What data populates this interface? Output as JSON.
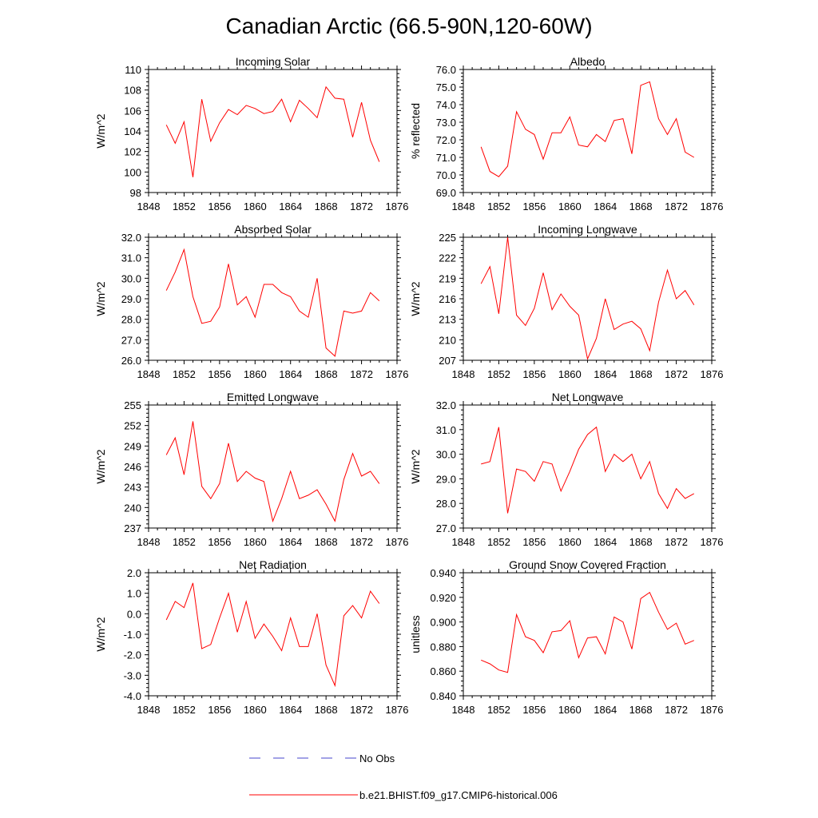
{
  "figure": {
    "title": "Canadian Arctic (66.5-90N,120-60W)"
  },
  "legend": {
    "items": [
      {
        "label": "No Obs",
        "color": "#4444cc",
        "style": "dashed"
      },
      {
        "label": "b.e21.BHIST.f09_g17.CMIP6-historical.006",
        "color": "#ff0000",
        "style": "solid"
      }
    ]
  },
  "chart_data": [
    {
      "type": "line",
      "title": "Incoming Solar",
      "ylabel": "W/m^2",
      "xlim": [
        1848,
        1876
      ],
      "xticks": [
        "1848",
        "1852",
        "1856",
        "1860",
        "1864",
        "1868",
        "1872",
        "1876"
      ],
      "ylim": [
        98,
        110
      ],
      "yticks": [
        "98",
        "100",
        "102",
        "104",
        "106",
        "108",
        "110"
      ],
      "x": [
        1850,
        1851,
        1852,
        1853,
        1854,
        1855,
        1856,
        1857,
        1858,
        1859,
        1860,
        1861,
        1862,
        1863,
        1864,
        1865,
        1866,
        1867,
        1868,
        1869,
        1870,
        1871,
        1872,
        1873,
        1874
      ],
      "series": [
        {
          "name": "b.e21.BHIST.f09_g17.CMIP6-historical.006",
          "color": "#ff0000",
          "values": [
            104.6,
            102.8,
            104.9,
            99.5,
            107.1,
            103.0,
            104.8,
            106.1,
            105.6,
            106.5,
            106.2,
            105.7,
            105.9,
            107.1,
            104.9,
            107.0,
            106.2,
            105.3,
            108.3,
            107.2,
            107.1,
            103.4,
            106.8,
            103.1,
            101.0
          ]
        }
      ]
    },
    {
      "type": "line",
      "title": "Albedo",
      "ylabel": "% reflected",
      "xlim": [
        1848,
        1876
      ],
      "xticks": [
        "1848",
        "1852",
        "1856",
        "1860",
        "1864",
        "1868",
        "1872",
        "1876"
      ],
      "ylim": [
        69.0,
        76.0
      ],
      "yticks": [
        "69.0",
        "70.0",
        "71.0",
        "72.0",
        "73.0",
        "74.0",
        "75.0",
        "76.0"
      ],
      "x": [
        1850,
        1851,
        1852,
        1853,
        1854,
        1855,
        1856,
        1857,
        1858,
        1859,
        1860,
        1861,
        1862,
        1863,
        1864,
        1865,
        1866,
        1867,
        1868,
        1869,
        1870,
        1871,
        1872,
        1873,
        1874
      ],
      "series": [
        {
          "name": "b.e21.BHIST.f09_g17.CMIP6-historical.006",
          "color": "#ff0000",
          "values": [
            71.6,
            70.2,
            69.9,
            70.5,
            73.6,
            72.6,
            72.3,
            70.9,
            72.4,
            72.4,
            73.3,
            71.7,
            71.6,
            72.3,
            71.9,
            73.1,
            73.2,
            71.2,
            75.1,
            75.3,
            73.2,
            72.3,
            73.2,
            71.3,
            71.0
          ]
        }
      ]
    },
    {
      "type": "line",
      "title": "Absorbed Solar",
      "ylabel": "W/m^2",
      "xlim": [
        1848,
        1876
      ],
      "xticks": [
        "1848",
        "1852",
        "1856",
        "1860",
        "1864",
        "1868",
        "1872",
        "1876"
      ],
      "ylim": [
        26.0,
        32.0
      ],
      "yticks": [
        "26.0",
        "27.0",
        "28.0",
        "29.0",
        "30.0",
        "31.0",
        "32.0"
      ],
      "x": [
        1850,
        1851,
        1852,
        1853,
        1854,
        1855,
        1856,
        1857,
        1858,
        1859,
        1860,
        1861,
        1862,
        1863,
        1864,
        1865,
        1866,
        1867,
        1868,
        1869,
        1870,
        1871,
        1872,
        1873,
        1874
      ],
      "series": [
        {
          "name": "b.e21.BHIST.f09_g17.CMIP6-historical.006",
          "color": "#ff0000",
          "values": [
            29.4,
            30.3,
            31.4,
            29.1,
            27.8,
            27.9,
            28.6,
            30.7,
            28.7,
            29.1,
            28.1,
            29.7,
            29.7,
            29.3,
            29.1,
            28.4,
            28.1,
            30.0,
            26.6,
            26.2,
            28.4,
            28.3,
            28.4,
            29.3,
            28.9
          ]
        }
      ]
    },
    {
      "type": "line",
      "title": "Incoming Longwave",
      "ylabel": "W/m^2",
      "xlim": [
        1848,
        1876
      ],
      "xticks": [
        "1848",
        "1852",
        "1856",
        "1860",
        "1864",
        "1868",
        "1872",
        "1876"
      ],
      "ylim": [
        207,
        225
      ],
      "yticks": [
        "207",
        "210",
        "213",
        "216",
        "219",
        "222",
        "225"
      ],
      "x": [
        1850,
        1851,
        1852,
        1853,
        1854,
        1855,
        1856,
        1857,
        1858,
        1859,
        1860,
        1861,
        1862,
        1863,
        1864,
        1865,
        1866,
        1867,
        1868,
        1869,
        1870,
        1871,
        1872,
        1873,
        1874
      ],
      "series": [
        {
          "name": "b.e21.BHIST.f09_g17.CMIP6-historical.006",
          "color": "#ff0000",
          "values": [
            218.2,
            220.7,
            213.8,
            225.0,
            213.6,
            212.1,
            214.6,
            219.8,
            214.4,
            216.7,
            214.9,
            213.6,
            207.2,
            210.2,
            216.0,
            211.5,
            212.3,
            212.7,
            211.6,
            208.4,
            215.5,
            220.2,
            216.0,
            217.2,
            215.1
          ]
        }
      ]
    },
    {
      "type": "line",
      "title": "Emitted Longwave",
      "ylabel": "W/m^2",
      "xlim": [
        1848,
        1876
      ],
      "xticks": [
        "1848",
        "1852",
        "1856",
        "1860",
        "1864",
        "1868",
        "1872",
        "1876"
      ],
      "ylim": [
        237,
        255
      ],
      "yticks": [
        "237",
        "240",
        "243",
        "246",
        "249",
        "252",
        "255"
      ],
      "x": [
        1850,
        1851,
        1852,
        1853,
        1854,
        1855,
        1856,
        1857,
        1858,
        1859,
        1860,
        1861,
        1862,
        1863,
        1864,
        1865,
        1866,
        1867,
        1868,
        1869,
        1870,
        1871,
        1872,
        1873,
        1874
      ],
      "series": [
        {
          "name": "b.e21.BHIST.f09_g17.CMIP6-historical.006",
          "color": "#ff0000",
          "values": [
            247.7,
            250.2,
            244.8,
            252.6,
            243.1,
            241.3,
            243.5,
            249.4,
            243.8,
            245.3,
            244.3,
            243.8,
            238.0,
            241.3,
            245.3,
            241.3,
            241.8,
            242.6,
            240.5,
            238.0,
            244.1,
            247.9,
            244.6,
            245.3,
            243.5
          ]
        }
      ]
    },
    {
      "type": "line",
      "title": "Net Longwave",
      "ylabel": "W/m^2",
      "xlim": [
        1848,
        1876
      ],
      "xticks": [
        "1848",
        "1852",
        "1856",
        "1860",
        "1864",
        "1868",
        "1872",
        "1876"
      ],
      "ylim": [
        27.0,
        32.0
      ],
      "yticks": [
        "27.0",
        "28.0",
        "29.0",
        "30.0",
        "31.0",
        "32.0"
      ],
      "x": [
        1850,
        1851,
        1852,
        1853,
        1854,
        1855,
        1856,
        1857,
        1858,
        1859,
        1860,
        1861,
        1862,
        1863,
        1864,
        1865,
        1866,
        1867,
        1868,
        1869,
        1870,
        1871,
        1872,
        1873,
        1874
      ],
      "series": [
        {
          "name": "b.e21.BHIST.f09_g17.CMIP6-historical.006",
          "color": "#ff0000",
          "values": [
            29.6,
            29.7,
            31.1,
            27.6,
            29.4,
            29.3,
            28.9,
            29.7,
            29.6,
            28.5,
            29.3,
            30.2,
            30.8,
            31.1,
            29.3,
            30.0,
            29.7,
            30.0,
            29.0,
            29.7,
            28.4,
            27.8,
            28.6,
            28.2,
            28.4
          ]
        }
      ]
    },
    {
      "type": "line",
      "title": "Net Radiation",
      "ylabel": "W/m^2",
      "xlim": [
        1848,
        1876
      ],
      "xticks": [
        "1848",
        "1852",
        "1856",
        "1860",
        "1864",
        "1868",
        "1872",
        "1876"
      ],
      "ylim": [
        -4.0,
        2.0
      ],
      "yticks": [
        "-4.0",
        "-3.0",
        "-2.0",
        "-1.0",
        "0.0",
        "1.0",
        "2.0"
      ],
      "x": [
        1850,
        1851,
        1852,
        1853,
        1854,
        1855,
        1856,
        1857,
        1858,
        1859,
        1860,
        1861,
        1862,
        1863,
        1864,
        1865,
        1866,
        1867,
        1868,
        1869,
        1870,
        1871,
        1872,
        1873,
        1874
      ],
      "series": [
        {
          "name": "b.e21.BHIST.f09_g17.CMIP6-historical.006",
          "color": "#ff0000",
          "values": [
            -0.3,
            0.6,
            0.3,
            1.5,
            -1.7,
            -1.5,
            -0.2,
            1.0,
            -0.9,
            0.6,
            -1.2,
            -0.5,
            -1.1,
            -1.8,
            -0.2,
            -1.6,
            -1.6,
            0.0,
            -2.5,
            -3.5,
            -0.1,
            0.4,
            -0.2,
            1.1,
            0.5
          ]
        }
      ]
    },
    {
      "type": "line",
      "title": "Ground Snow Covered Fraction",
      "ylabel": "unitless",
      "xlim": [
        1848,
        1876
      ],
      "xticks": [
        "1848",
        "1852",
        "1856",
        "1860",
        "1864",
        "1868",
        "1872",
        "1876"
      ],
      "ylim": [
        0.84,
        0.94
      ],
      "yticks": [
        "0.840",
        "0.860",
        "0.880",
        "0.900",
        "0.920",
        "0.940"
      ],
      "x": [
        1850,
        1851,
        1852,
        1853,
        1854,
        1855,
        1856,
        1857,
        1858,
        1859,
        1860,
        1861,
        1862,
        1863,
        1864,
        1865,
        1866,
        1867,
        1868,
        1869,
        1870,
        1871,
        1872,
        1873,
        1874
      ],
      "series": [
        {
          "name": "b.e21.BHIST.f09_g17.CMIP6-historical.006",
          "color": "#ff0000",
          "values": [
            0.869,
            0.866,
            0.861,
            0.859,
            0.906,
            0.888,
            0.885,
            0.875,
            0.892,
            0.893,
            0.901,
            0.871,
            0.887,
            0.888,
            0.874,
            0.904,
            0.9,
            0.878,
            0.919,
            0.924,
            0.908,
            0.894,
            0.899,
            0.882,
            0.885
          ]
        }
      ]
    }
  ]
}
